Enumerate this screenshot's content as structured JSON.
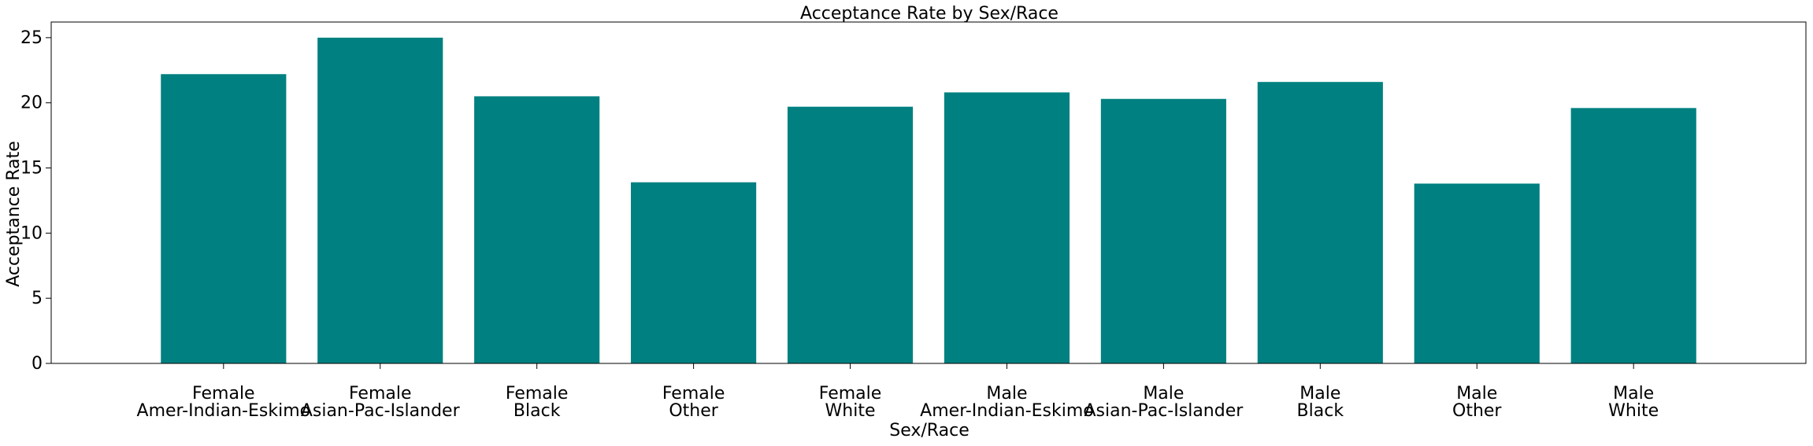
{
  "chart_data": {
    "type": "bar",
    "title": "Acceptance Rate by Sex/Race",
    "xlabel": "Sex/Race",
    "ylabel": "Acceptance Rate",
    "ylim": [
      0,
      26.2
    ],
    "yticks": [
      0,
      5,
      10,
      15,
      20,
      25
    ],
    "grid": false,
    "bar_color": "#008080",
    "categories": [
      [
        "Female",
        "Amer-Indian-Eskimo"
      ],
      [
        "Female",
        "Asian-Pac-Islander"
      ],
      [
        "Female",
        "Black"
      ],
      [
        "Female",
        "Other"
      ],
      [
        "Female",
        "White"
      ],
      [
        "Male",
        "Amer-Indian-Eskimo"
      ],
      [
        "Male",
        "Asian-Pac-Islander"
      ],
      [
        "Male",
        "Black"
      ],
      [
        "Male",
        "Other"
      ],
      [
        "Male",
        "White"
      ]
    ],
    "values": [
      22.2,
      25.0,
      20.5,
      13.9,
      19.7,
      20.8,
      20.3,
      21.6,
      13.8,
      19.6
    ]
  }
}
